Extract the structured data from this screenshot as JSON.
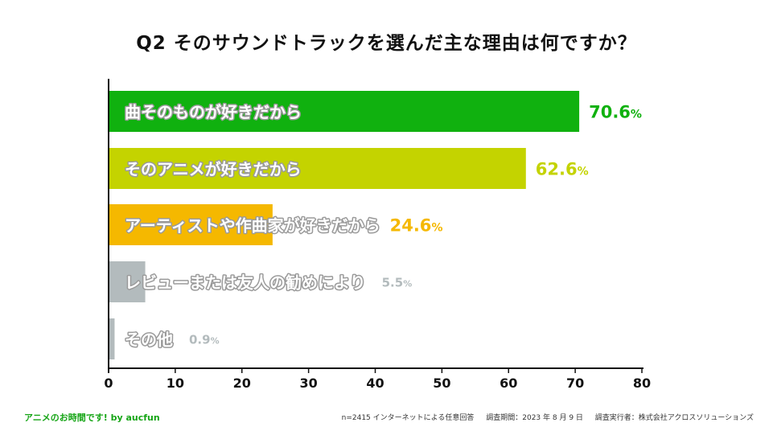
{
  "chart_data": {
    "type": "bar",
    "orientation": "horizontal",
    "title": "Q2  そのサウンドトラックを選んだ主な理由は何ですか？",
    "categories": [
      "曲そのものが好きだから",
      "そのアニメが好きだから",
      "アーティストや作曲家が好きだから",
      "レビューまたは友人の勧めにより",
      "その他"
    ],
    "values": [
      70.6,
      62.6,
      24.6,
      5.5,
      0.9
    ],
    "value_labels": [
      "70.6",
      "62.6",
      "24.6",
      "5.5",
      "0.9"
    ],
    "unit": "%",
    "colors": [
      "#10b10f",
      "#c4d300",
      "#f5b800",
      "#b3bbbd",
      "#b3bbbd"
    ],
    "xlim": [
      0,
      80
    ],
    "xticks": [
      "0",
      "10",
      "20",
      "30",
      "40",
      "50",
      "60",
      "70",
      "80"
    ]
  },
  "footer": {
    "brand": "アニメのお時間です! by aucfun",
    "sample": "n=2415 インターネットによる任意回答",
    "period": "調査期間：2023 年 8 月 9 日",
    "conductor": "調査実行者：株式会社アクロスソリューションズ"
  }
}
